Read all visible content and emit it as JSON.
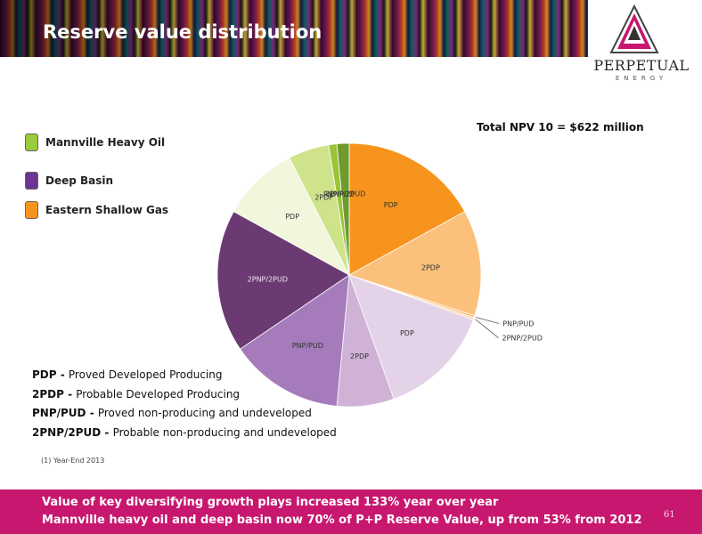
{
  "title": "Reserve value distribution",
  "logo": {
    "name": "PERPETUAL",
    "sub": "ENERGY"
  },
  "legend": [
    {
      "label": "Mannville Heavy Oil",
      "color": "#9bcb3c"
    },
    {
      "label": "Deep Basin",
      "color": "#6b3590"
    },
    {
      "label": "Eastern Shallow Gas",
      "color": "#f7941d"
    }
  ],
  "npv_label": "Total NPV 10 = $622 million",
  "chart_data": {
    "type": "pie",
    "title": "",
    "slices": [
      {
        "label": "PDP",
        "group": "Eastern Shallow Gas",
        "value": 17.0,
        "color": "#f7941d"
      },
      {
        "label": "2PDP",
        "group": "Eastern Shallow Gas",
        "value": 13.0,
        "color": "#fbc07b"
      },
      {
        "label": "PNP/PUD",
        "group": "Eastern Shallow Gas",
        "value": 0.25,
        "color": "#f9b567"
      },
      {
        "label": "2PNP/2PUD",
        "group": "Eastern Shallow Gas",
        "value": 0.25,
        "color": "#fcd3a3"
      },
      {
        "label": "PDP",
        "group": "Deep Basin",
        "value": 14.0,
        "color": "#e3d2e8"
      },
      {
        "label": "2PDP",
        "group": "Deep Basin",
        "value": 7.0,
        "color": "#cfb2d6"
      },
      {
        "label": "PNP/PUD",
        "group": "Deep Basin",
        "value": 14.0,
        "color": "#a57bbb"
      },
      {
        "label": "2PNP/2PUD",
        "group": "Deep Basin",
        "value": 17.5,
        "color": "#6b3a73"
      },
      {
        "label": "PDP",
        "group": "Mannville Heavy Oil",
        "value": 9.5,
        "color": "#f2f6dc"
      },
      {
        "label": "2PDP",
        "group": "Mannville Heavy Oil",
        "value": 5.0,
        "color": "#cfe38a"
      },
      {
        "label": "PNP/PUD",
        "group": "Mannville Heavy Oil",
        "value": 1.0,
        "color": "#9bc33a"
      },
      {
        "label": "2PNP/2PUD",
        "group": "Mannville Heavy Oil",
        "value": 1.5,
        "color": "#6f9a2e"
      }
    ]
  },
  "definitions": [
    {
      "term": "PDP",
      "text": "Proved Developed Producing"
    },
    {
      "term": "2PDP",
      "text": "Probable Developed Producing"
    },
    {
      "term": "PNP/PUD",
      "text": "Proved non-producing and undeveloped"
    },
    {
      "term": "2PNP/2PUD",
      "text": "Probable non-producing and undeveloped"
    }
  ],
  "footnote": "(1)   Year-End 2013",
  "footer": {
    "line1": "Value of key diversifying growth plays increased 133% year over year",
    "line2": "Mannville heavy oil and deep basin now 70% of P+P Reserve Value, up from 53% from 2012",
    "page": "61"
  }
}
